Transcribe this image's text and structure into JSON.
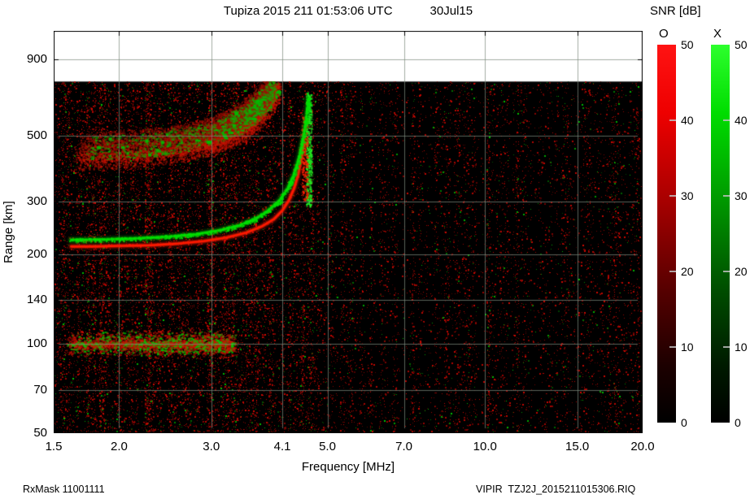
{
  "footer": {
    "left": "RxMask 11001111",
    "right": "VIPIR  TZJ2J_2015211015306.RIQ"
  },
  "chart_data": {
    "type": "heatmap",
    "subtype": "ionogram",
    "title": "Tupiza 2015 211 01:53:06 UTC",
    "date_label": "30Jul15",
    "xlabel": "Frequency [MHz]",
    "ylabel": "Range [km]",
    "x_scale": "log",
    "y_scale": "log",
    "xlim": [
      1.5,
      20
    ],
    "ylim": [
      50,
      1125
    ],
    "x_ticks": [
      "1.5",
      "2.0",
      "3.0",
      "4.1",
      "5.0",
      "7.0",
      "10.0",
      "15.0",
      "20.0"
    ],
    "y_ticks": [
      "50",
      "70",
      "100",
      "140",
      "200",
      "300",
      "500",
      "900"
    ],
    "grid": true,
    "data_max_range_km": 760,
    "colorbar": {
      "title": "SNR [dB]",
      "min": 0,
      "max": 50,
      "ticks": [
        0,
        10,
        20,
        30,
        40,
        50
      ],
      "o_label": "O",
      "x_label": "X",
      "o_color": "#ff0000",
      "x_color": "#00dd00"
    },
    "traces": [
      {
        "name": "O-mode F-layer trace",
        "mode": "O",
        "style": "solid",
        "color": "#ff1a00",
        "points": [
          [
            1.62,
            212
          ],
          [
            1.8,
            212
          ],
          [
            2.0,
            213
          ],
          [
            2.3,
            214
          ],
          [
            2.6,
            217
          ],
          [
            2.9,
            221
          ],
          [
            3.2,
            227
          ],
          [
            3.5,
            236
          ],
          [
            3.75,
            248
          ],
          [
            3.95,
            262
          ],
          [
            4.1,
            280
          ],
          [
            4.22,
            303
          ],
          [
            4.32,
            333
          ],
          [
            4.4,
            372
          ],
          [
            4.46,
            420
          ],
          [
            4.5,
            472
          ]
        ]
      },
      {
        "name": "X-mode F-layer trace",
        "mode": "X",
        "style": "solid",
        "color": "#00e000",
        "points": [
          [
            1.62,
            223
          ],
          [
            1.9,
            224
          ],
          [
            2.2,
            226
          ],
          [
            2.5,
            229
          ],
          [
            2.8,
            233
          ],
          [
            3.1,
            240
          ],
          [
            3.4,
            250
          ],
          [
            3.65,
            263
          ],
          [
            3.85,
            280
          ],
          [
            4.05,
            303
          ],
          [
            4.2,
            333
          ],
          [
            4.32,
            372
          ],
          [
            4.42,
            425
          ],
          [
            4.5,
            495
          ],
          [
            4.56,
            580
          ],
          [
            4.6,
            670
          ]
        ]
      },
      {
        "name": "O-mode second-hop lower band",
        "mode": "O",
        "style": "diffuse",
        "color": "#c81400",
        "points": [
          [
            1.65,
            420
          ],
          [
            2.1,
            430
          ],
          [
            2.55,
            446
          ],
          [
            2.95,
            470
          ],
          [
            3.25,
            500
          ],
          [
            3.5,
            540
          ],
          [
            3.7,
            590
          ],
          [
            3.87,
            655
          ],
          [
            4.0,
            725
          ]
        ]
      },
      {
        "name": "O-mode second-hop upper band",
        "mode": "O",
        "style": "diffuse",
        "color": "#a01000",
        "points": [
          [
            1.7,
            468
          ],
          [
            2.2,
            480
          ],
          [
            2.65,
            500
          ],
          [
            3.0,
            528
          ],
          [
            3.3,
            565
          ],
          [
            3.55,
            615
          ],
          [
            3.75,
            675
          ],
          [
            3.88,
            735
          ]
        ]
      },
      {
        "name": "X-mode second-hop patches",
        "mode": "X",
        "style": "diffuse",
        "color": "#00bb00",
        "points": [
          [
            1.75,
            455
          ],
          [
            2.2,
            465
          ],
          [
            2.65,
            485
          ],
          [
            3.05,
            515
          ],
          [
            3.35,
            555
          ],
          [
            3.6,
            605
          ],
          [
            3.8,
            665
          ],
          [
            3.93,
            730
          ]
        ]
      }
    ],
    "spread_strips": [
      {
        "freq": 4.6,
        "range_span": [
          290,
          700
        ],
        "color": "#22ee22",
        "density": 380
      },
      {
        "freq": 4.52,
        "range_span": [
          300,
          580
        ],
        "color": "#ff2200",
        "density": 160
      }
    ],
    "es_layer": {
      "freq_range": [
        1.6,
        3.3
      ],
      "range_km": 100
    },
    "noise": {
      "seed": 211,
      "base_color": "#ff0000",
      "secondary_color": "#00cc00"
    }
  }
}
